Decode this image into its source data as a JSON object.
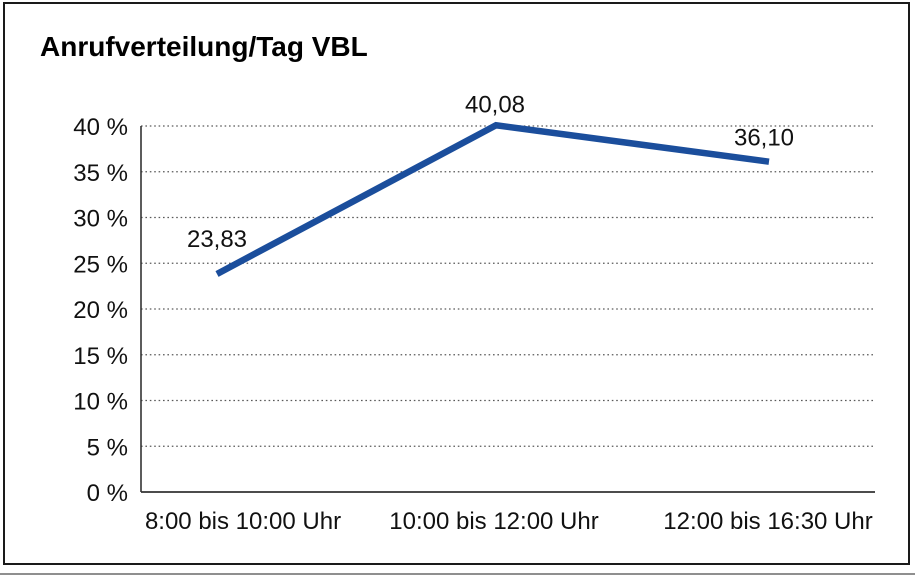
{
  "title": "Anrufverteilung/Tag VBL",
  "colors": {
    "line": "#1b4e9c",
    "grid": "#5a5a5a",
    "axis": "#333333",
    "text": "#111111",
    "frame_border": "#1a1a1a",
    "bottom_rule": "#8f8f8f",
    "background": "#ffffff"
  },
  "chart_data": {
    "type": "line",
    "title": "Anrufverteilung/Tag VBL",
    "categories": [
      "8:00 bis 10:00 Uhr",
      "10:00 bis 12:00 Uhr",
      "12:00 bis 16:30 Uhr"
    ],
    "values": [
      23.83,
      40.08,
      36.1
    ],
    "data_labels": [
      "23,83",
      "40,08",
      "36,10"
    ],
    "series_name": "Anrufverteilung/Tag VBL",
    "xlabel": "",
    "ylabel": "",
    "ylim": [
      0,
      40
    ],
    "ytick_step": 5,
    "ytick_labels": [
      "0 %",
      "5 %",
      "10 %",
      "15 %",
      "20 %",
      "25 %",
      "30 %",
      "35 %",
      "40 %"
    ],
    "grid": "horizontal-dotted",
    "legend": "none",
    "markers": "none"
  }
}
